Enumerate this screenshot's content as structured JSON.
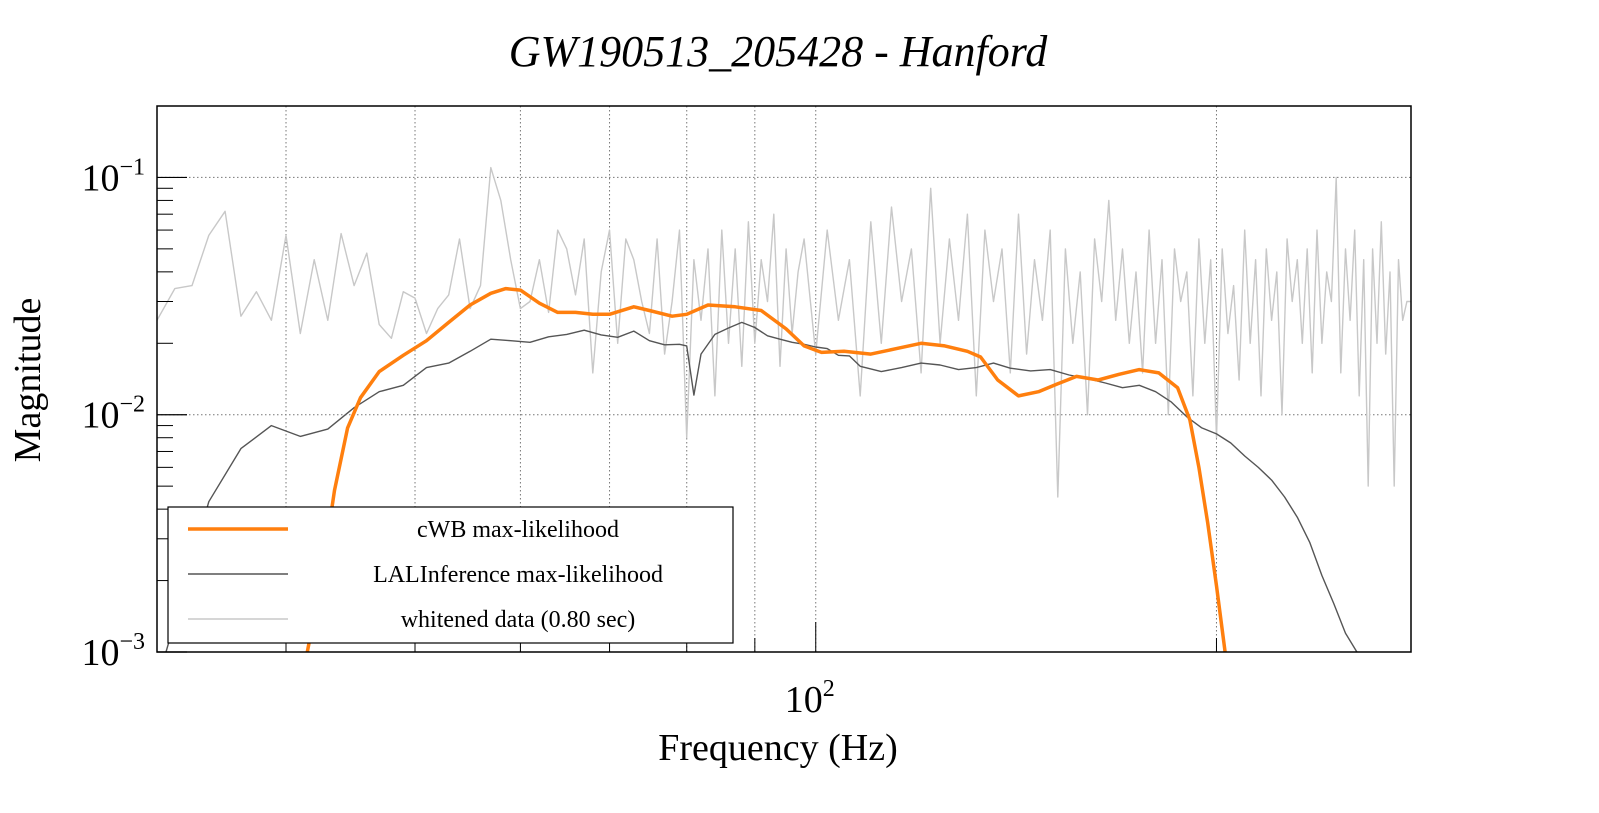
{
  "chart_data": {
    "type": "line",
    "title": "GW190513_205428 - Hanford",
    "xlabel": "Frequency (Hz)",
    "ylabel": "Magnitude",
    "x_scale": "log",
    "y_scale": "log",
    "xlim": [
      32,
      280
    ],
    "ylim": [
      0.001,
      0.2
    ],
    "x_tick_labels": [
      {
        "value": 100,
        "base": "10",
        "exp": "2"
      }
    ],
    "y_tick_labels": [
      {
        "value": 0.1,
        "base": "10",
        "exp": "−1"
      },
      {
        "value": 0.01,
        "base": "10",
        "exp": "−2"
      },
      {
        "value": 0.001,
        "base": "10",
        "exp": "−3"
      }
    ],
    "grid": true,
    "legend_position": "bottom-left",
    "series": [
      {
        "name": "cWB max-likelihood",
        "color": "#ff7f0e",
        "points": [
          [
            41.5,
            0.001
          ],
          [
            42.5,
            0.002
          ],
          [
            43.5,
            0.0048
          ],
          [
            44.5,
            0.0088
          ],
          [
            45.5,
            0.0118
          ],
          [
            47,
            0.0152
          ],
          [
            49,
            0.0178
          ],
          [
            51,
            0.0205
          ],
          [
            53,
            0.0245
          ],
          [
            55,
            0.029
          ],
          [
            57,
            0.0325
          ],
          [
            58.5,
            0.034
          ],
          [
            60,
            0.0335
          ],
          [
            62,
            0.0295
          ],
          [
            64,
            0.027
          ],
          [
            66,
            0.027
          ],
          [
            68,
            0.0265
          ],
          [
            70,
            0.0265
          ],
          [
            73,
            0.0285
          ],
          [
            75,
            0.0275
          ],
          [
            78,
            0.026
          ],
          [
            80,
            0.0265
          ],
          [
            83,
            0.029
          ],
          [
            87,
            0.0285
          ],
          [
            91,
            0.0275
          ],
          [
            95,
            0.023
          ],
          [
            98,
            0.0195
          ],
          [
            101,
            0.0183
          ],
          [
            105,
            0.0185
          ],
          [
            110,
            0.018
          ],
          [
            115,
            0.019
          ],
          [
            120,
            0.02
          ],
          [
            125,
            0.0195
          ],
          [
            130,
            0.0185
          ],
          [
            133,
            0.0175
          ],
          [
            137,
            0.014
          ],
          [
            142,
            0.012
          ],
          [
            147,
            0.0125
          ],
          [
            152,
            0.0135
          ],
          [
            157,
            0.0145
          ],
          [
            163,
            0.014
          ],
          [
            169,
            0.0148
          ],
          [
            175,
            0.0155
          ],
          [
            181,
            0.015
          ],
          [
            187,
            0.013
          ],
          [
            191,
            0.0095
          ],
          [
            194,
            0.006
          ],
          [
            197,
            0.0035
          ],
          [
            200,
            0.0019
          ],
          [
            203,
            0.001
          ]
        ]
      },
      {
        "name": "LALInference max-likelihood",
        "color": "#555555",
        "points": [
          [
            32.5,
            0.001
          ],
          [
            33.5,
            0.0018
          ],
          [
            35,
            0.0043
          ],
          [
            37,
            0.0072
          ],
          [
            39,
            0.009
          ],
          [
            41,
            0.0081
          ],
          [
            43,
            0.0087
          ],
          [
            45,
            0.0107
          ],
          [
            47,
            0.0125
          ],
          [
            49,
            0.0133
          ],
          [
            51,
            0.0158
          ],
          [
            53,
            0.0165
          ],
          [
            55,
            0.0185
          ],
          [
            57,
            0.0208
          ],
          [
            59,
            0.0205
          ],
          [
            61,
            0.0202
          ],
          [
            63,
            0.0213
          ],
          [
            65,
            0.0218
          ],
          [
            67,
            0.0227
          ],
          [
            69,
            0.0217
          ],
          [
            71,
            0.0212
          ],
          [
            73,
            0.0225
          ],
          [
            75,
            0.0205
          ],
          [
            77,
            0.0197
          ],
          [
            79,
            0.0198
          ],
          [
            80,
            0.0195
          ],
          [
            81,
            0.0121
          ],
          [
            82,
            0.018
          ],
          [
            84,
            0.0218
          ],
          [
            86,
            0.0232
          ],
          [
            88,
            0.0245
          ],
          [
            90,
            0.0233
          ],
          [
            92,
            0.0215
          ],
          [
            94,
            0.0208
          ],
          [
            96,
            0.0202
          ],
          [
            98,
            0.0198
          ],
          [
            100,
            0.0193
          ],
          [
            102,
            0.019
          ],
          [
            104,
            0.0178
          ],
          [
            106,
            0.0177
          ],
          [
            108,
            0.016
          ],
          [
            110,
            0.0156
          ],
          [
            112,
            0.0152
          ],
          [
            116,
            0.0158
          ],
          [
            120,
            0.0165
          ],
          [
            124,
            0.0162
          ],
          [
            128,
            0.0155
          ],
          [
            132,
            0.0158
          ],
          [
            136,
            0.0165
          ],
          [
            140,
            0.0157
          ],
          [
            145,
            0.0153
          ],
          [
            150,
            0.0155
          ],
          [
            155,
            0.0147
          ],
          [
            160,
            0.0142
          ],
          [
            165,
            0.0136
          ],
          [
            170,
            0.013
          ],
          [
            175,
            0.0133
          ],
          [
            180,
            0.0125
          ],
          [
            185,
            0.0113
          ],
          [
            190,
            0.0098
          ],
          [
            195,
            0.0088
          ],
          [
            200,
            0.0083
          ],
          [
            205,
            0.0076
          ],
          [
            210,
            0.0067
          ],
          [
            215,
            0.006
          ],
          [
            220,
            0.0053
          ],
          [
            225,
            0.0045
          ],
          [
            230,
            0.0037
          ],
          [
            235,
            0.0029
          ],
          [
            240,
            0.0021
          ],
          [
            245,
            0.0016
          ],
          [
            250,
            0.0012
          ],
          [
            255,
            0.001
          ]
        ]
      },
      {
        "name": "whitened data (0.80 sec)",
        "color": "#c8c8c8",
        "points": [
          [
            32,
            0.025
          ],
          [
            33,
            0.034
          ],
          [
            34,
            0.035
          ],
          [
            35,
            0.057
          ],
          [
            36,
            0.072
          ],
          [
            37,
            0.026
          ],
          [
            38,
            0.033
          ],
          [
            39,
            0.025
          ],
          [
            40,
            0.057
          ],
          [
            41,
            0.022
          ],
          [
            42,
            0.045
          ],
          [
            43,
            0.025
          ],
          [
            44,
            0.058
          ],
          [
            45,
            0.035
          ],
          [
            46,
            0.048
          ],
          [
            47,
            0.024
          ],
          [
            48,
            0.021
          ],
          [
            49,
            0.033
          ],
          [
            50,
            0.031
          ],
          [
            51,
            0.022
          ],
          [
            52,
            0.028
          ],
          [
            53,
            0.032
          ],
          [
            54,
            0.055
          ],
          [
            55,
            0.028
          ],
          [
            56,
            0.035
          ],
          [
            57,
            0.11
          ],
          [
            58,
            0.08
          ],
          [
            59,
            0.045
          ],
          [
            60,
            0.028
          ],
          [
            61,
            0.03
          ],
          [
            62,
            0.045
          ],
          [
            63,
            0.027
          ],
          [
            64,
            0.06
          ],
          [
            65,
            0.05
          ],
          [
            66,
            0.032
          ],
          [
            67,
            0.055
          ],
          [
            68,
            0.015
          ],
          [
            69,
            0.04
          ],
          [
            70,
            0.06
          ],
          [
            71,
            0.02
          ],
          [
            72,
            0.055
          ],
          [
            73,
            0.045
          ],
          [
            74,
            0.03
          ],
          [
            75,
            0.022
          ],
          [
            76,
            0.055
          ],
          [
            77,
            0.018
          ],
          [
            78,
            0.03
          ],
          [
            79,
            0.06
          ],
          [
            80,
            0.008
          ],
          [
            81,
            0.045
          ],
          [
            82,
            0.025
          ],
          [
            83,
            0.05
          ],
          [
            84,
            0.012
          ],
          [
            85,
            0.06
          ],
          [
            86,
            0.02
          ],
          [
            87,
            0.05
          ],
          [
            88,
            0.016
          ],
          [
            89,
            0.065
          ],
          [
            90,
            0.02
          ],
          [
            91,
            0.045
          ],
          [
            92,
            0.03
          ],
          [
            93,
            0.07
          ],
          [
            94,
            0.016
          ],
          [
            95,
            0.05
          ],
          [
            96,
            0.022
          ],
          [
            97,
            0.04
          ],
          [
            98,
            0.055
          ],
          [
            100,
            0.018
          ],
          [
            102,
            0.06
          ],
          [
            104,
            0.025
          ],
          [
            106,
            0.045
          ],
          [
            108,
            0.012
          ],
          [
            110,
            0.065
          ],
          [
            112,
            0.02
          ],
          [
            114,
            0.075
          ],
          [
            116,
            0.03
          ],
          [
            118,
            0.05
          ],
          [
            120,
            0.015
          ],
          [
            122,
            0.09
          ],
          [
            124,
            0.02
          ],
          [
            126,
            0.055
          ],
          [
            128,
            0.025
          ],
          [
            130,
            0.07
          ],
          [
            132,
            0.012
          ],
          [
            134,
            0.06
          ],
          [
            136,
            0.03
          ],
          [
            138,
            0.05
          ],
          [
            140,
            0.015
          ],
          [
            142,
            0.07
          ],
          [
            144,
            0.018
          ],
          [
            146,
            0.045
          ],
          [
            148,
            0.025
          ],
          [
            150,
            0.06
          ],
          [
            152,
            0.0045
          ],
          [
            154,
            0.05
          ],
          [
            156,
            0.02
          ],
          [
            158,
            0.04
          ],
          [
            160,
            0.01
          ],
          [
            162,
            0.055
          ],
          [
            164,
            0.03
          ],
          [
            166,
            0.08
          ],
          [
            168,
            0.025
          ],
          [
            170,
            0.05
          ],
          [
            172,
            0.02
          ],
          [
            174,
            0.04
          ],
          [
            176,
            0.015
          ],
          [
            178,
            0.06
          ],
          [
            180,
            0.02
          ],
          [
            182,
            0.045
          ],
          [
            184,
            0.01
          ],
          [
            186,
            0.05
          ],
          [
            188,
            0.03
          ],
          [
            190,
            0.04
          ],
          [
            192,
            0.012
          ],
          [
            194,
            0.055
          ],
          [
            196,
            0.02
          ],
          [
            198,
            0.045
          ],
          [
            200,
            0.008
          ],
          [
            202,
            0.05
          ],
          [
            204,
            0.022
          ],
          [
            206,
            0.035
          ],
          [
            208,
            0.014
          ],
          [
            210,
            0.06
          ],
          [
            212,
            0.02
          ],
          [
            214,
            0.045
          ],
          [
            216,
            0.012
          ],
          [
            218,
            0.05
          ],
          [
            220,
            0.025
          ],
          [
            222,
            0.04
          ],
          [
            224,
            0.01
          ],
          [
            226,
            0.055
          ],
          [
            228,
            0.03
          ],
          [
            230,
            0.045
          ],
          [
            232,
            0.02
          ],
          [
            234,
            0.05
          ],
          [
            236,
            0.015
          ],
          [
            238,
            0.06
          ],
          [
            240,
            0.02
          ],
          [
            242,
            0.04
          ],
          [
            244,
            0.03
          ],
          [
            246,
            0.1
          ],
          [
            248,
            0.015
          ],
          [
            250,
            0.05
          ],
          [
            252,
            0.025
          ],
          [
            254,
            0.06
          ],
          [
            256,
            0.012
          ],
          [
            258,
            0.045
          ],
          [
            260,
            0.005
          ],
          [
            262,
            0.05
          ],
          [
            264,
            0.02
          ],
          [
            266,
            0.065
          ],
          [
            268,
            0.018
          ],
          [
            270,
            0.04
          ],
          [
            272,
            0.005
          ],
          [
            274,
            0.045
          ],
          [
            276,
            0.025
          ],
          [
            278,
            0.03
          ],
          [
            280,
            0.03
          ]
        ]
      }
    ]
  }
}
